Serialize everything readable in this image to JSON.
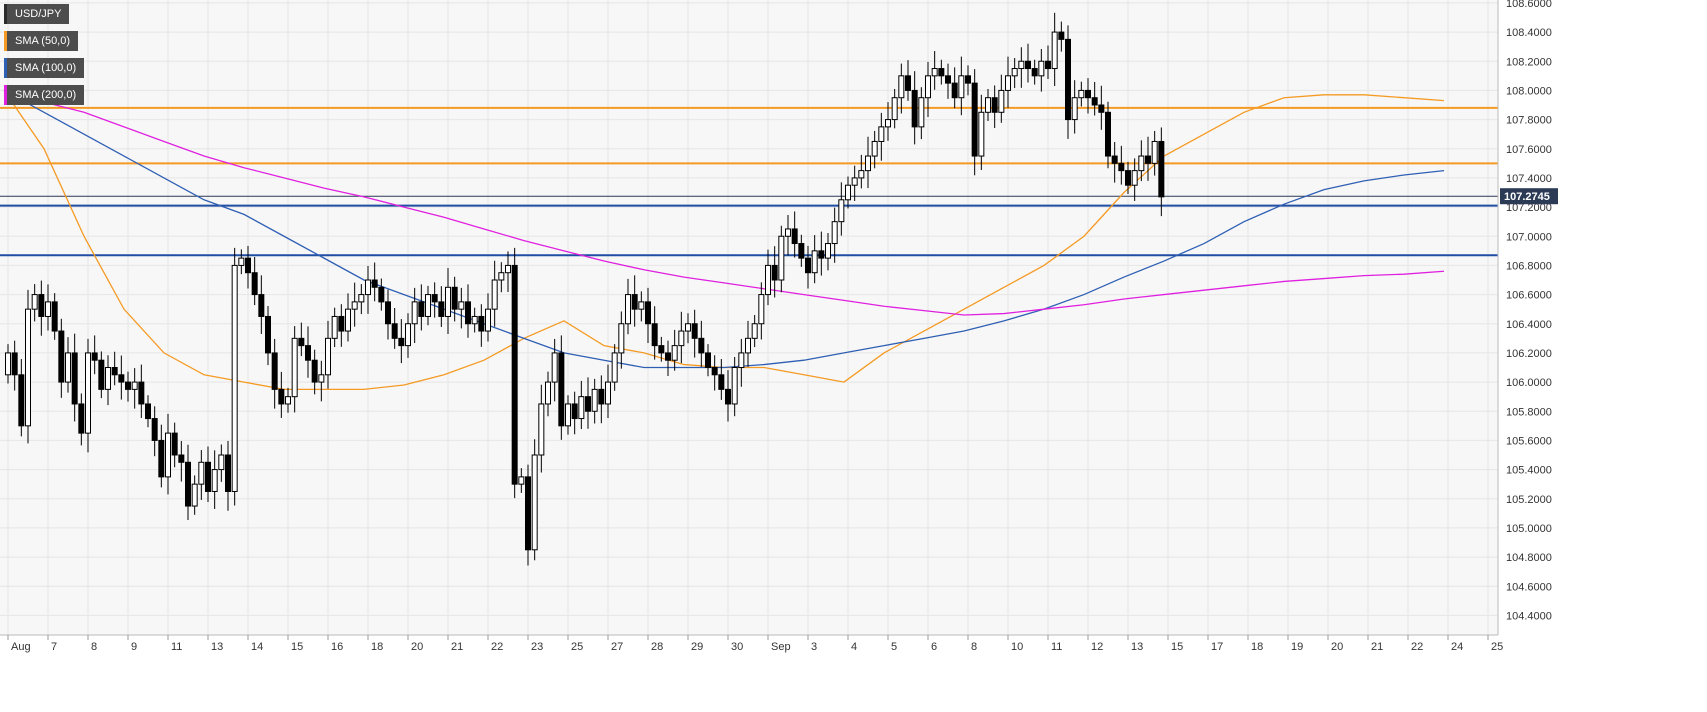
{
  "legend": [
    {
      "label": "USD/JPY",
      "color": "#2b2b2b"
    },
    {
      "label": "SMA (50,0)",
      "color": "#f59a23"
    },
    {
      "label": "SMA (100,0)",
      "color": "#2f5fb4"
    },
    {
      "label": "SMA (200,0)",
      "color": "#e020e0"
    }
  ],
  "colors": {
    "background": "#f7f7f7",
    "grid": "#e6e6e6",
    "bull_body": "#ffffff",
    "bear_body": "#000000",
    "wick": "#000000",
    "sma50": "#f59a23",
    "sma100": "#2f5fb4",
    "sma200": "#e020e0",
    "resistance": "#f59a23",
    "support": "#1f4ea3",
    "price_box": "#2b3a55"
  },
  "chart_data": {
    "type": "candlestick",
    "symbol": "USD/JPY",
    "current_price": "107.2745",
    "ylim": [
      104.3,
      108.62
    ],
    "yticks": [
      "104.4000",
      "104.6000",
      "104.8000",
      "105.0000",
      "105.2000",
      "105.4000",
      "105.6000",
      "105.8000",
      "106.0000",
      "106.2000",
      "106.4000",
      "106.6000",
      "106.8000",
      "107.0000",
      "107.2000",
      "107.4000",
      "107.6000",
      "107.8000",
      "108.0000",
      "108.2000",
      "108.4000",
      "108.6000"
    ],
    "xticks": [
      {
        "label": "Aug",
        "pos": 0
      },
      {
        "label": "7",
        "pos": 6
      },
      {
        "label": "8",
        "pos": 12
      },
      {
        "label": "9",
        "pos": 18
      },
      {
        "label": "11",
        "pos": 24
      },
      {
        "label": "13",
        "pos": 30
      },
      {
        "label": "14",
        "pos": 36
      },
      {
        "label": "15",
        "pos": 42
      },
      {
        "label": "16",
        "pos": 48
      },
      {
        "label": "18",
        "pos": 54
      },
      {
        "label": "20",
        "pos": 60
      },
      {
        "label": "21",
        "pos": 66
      },
      {
        "label": "22",
        "pos": 72
      },
      {
        "label": "23",
        "pos": 78
      },
      {
        "label": "25",
        "pos": 84
      },
      {
        "label": "27",
        "pos": 90
      },
      {
        "label": "28",
        "pos": 96
      },
      {
        "label": "29",
        "pos": 102
      },
      {
        "label": "30",
        "pos": 108
      },
      {
        "label": "Sep",
        "pos": 114
      },
      {
        "label": "3",
        "pos": 120
      },
      {
        "label": "4",
        "pos": 126
      },
      {
        "label": "5",
        "pos": 132
      },
      {
        "label": "6",
        "pos": 138
      },
      {
        "label": "8",
        "pos": 144
      },
      {
        "label": "10",
        "pos": 150
      },
      {
        "label": "11",
        "pos": 156
      },
      {
        "label": "12",
        "pos": 162
      },
      {
        "label": "13",
        "pos": 168
      },
      {
        "label": "15",
        "pos": 174
      },
      {
        "label": "17",
        "pos": 180
      },
      {
        "label": "18",
        "pos": 186
      },
      {
        "label": "19",
        "pos": 192
      },
      {
        "label": "20",
        "pos": 198
      },
      {
        "label": "21",
        "pos": 204
      },
      {
        "label": "22",
        "pos": 210
      },
      {
        "label": "24",
        "pos": 216
      },
      {
        "label": "25",
        "pos": 222
      }
    ],
    "candles_close": [
      106.2,
      106.05,
      105.7,
      106.5,
      106.6,
      106.45,
      106.55,
      106.35,
      106.0,
      106.2,
      105.85,
      105.65,
      106.2,
      106.15,
      105.95,
      106.1,
      106.05,
      106.0,
      105.95,
      106.0,
      105.85,
      105.75,
      105.6,
      105.35,
      105.65,
      105.5,
      105.45,
      105.15,
      105.3,
      105.45,
      105.25,
      105.4,
      105.5,
      105.25,
      106.8,
      106.85,
      106.75,
      106.6,
      106.45,
      106.2,
      105.95,
      105.85,
      105.9,
      106.3,
      106.25,
      106.15,
      106.0,
      106.05,
      106.3,
      106.45,
      106.35,
      106.5,
      106.55,
      106.6,
      106.7,
      106.65,
      106.55,
      106.4,
      106.3,
      106.25,
      106.4,
      106.55,
      106.45,
      106.6,
      106.55,
      106.45,
      106.65,
      106.5,
      106.55,
      106.4,
      106.45,
      106.35,
      106.5,
      106.7,
      106.75,
      106.8,
      105.3,
      105.35,
      104.85,
      105.5,
      105.85,
      106.0,
      106.2,
      105.7,
      105.85,
      105.75,
      105.9,
      105.8,
      105.95,
      105.85,
      106.0,
      106.2,
      106.4,
      106.6,
      106.5,
      106.55,
      106.4,
      106.25,
      106.2,
      106.15,
      106.25,
      106.35,
      106.4,
      106.3,
      106.2,
      106.1,
      106.05,
      105.95,
      105.85,
      106.1,
      106.2,
      106.3,
      106.4,
      106.6,
      106.8,
      106.7,
      107.0,
      107.05,
      106.95,
      106.85,
      106.75,
      106.9,
      106.85,
      106.95,
      107.1,
      107.25,
      107.35,
      107.4,
      107.45,
      107.55,
      107.65,
      107.75,
      107.8,
      107.95,
      108.1,
      108.0,
      107.75,
      107.95,
      108.1,
      108.15,
      108.1,
      108.05,
      107.95,
      108.1,
      108.05,
      107.55,
      107.85,
      107.95,
      107.85,
      108.0,
      108.1,
      108.15,
      108.2,
      108.15,
      108.1,
      108.2,
      108.15,
      108.4,
      108.35,
      107.8,
      107.95,
      108.0,
      107.95,
      107.9,
      107.85,
      107.55,
      107.5,
      107.45,
      107.35,
      107.45,
      107.55,
      107.5,
      107.65,
      107.27
    ],
    "candles_open": [
      106.05,
      106.2,
      106.05,
      105.7,
      106.5,
      106.6,
      106.45,
      106.55,
      106.35,
      106.0,
      106.2,
      105.85,
      105.65,
      106.2,
      106.15,
      105.95,
      106.1,
      106.05,
      106.0,
      105.95,
      106.0,
      105.85,
      105.75,
      105.6,
      105.35,
      105.65,
      105.5,
      105.45,
      105.15,
      105.3,
      105.45,
      105.25,
      105.4,
      105.5,
      105.25,
      106.8,
      106.85,
      106.75,
      106.6,
      106.45,
      106.2,
      105.95,
      105.85,
      105.9,
      106.3,
      106.25,
      106.15,
      106.0,
      106.05,
      106.3,
      106.45,
      106.35,
      106.5,
      106.55,
      106.6,
      106.7,
      106.65,
      106.55,
      106.4,
      106.3,
      106.25,
      106.4,
      106.55,
      106.45,
      106.6,
      106.55,
      106.45,
      106.65,
      106.5,
      106.55,
      106.4,
      106.45,
      106.35,
      106.5,
      106.7,
      106.75,
      106.8,
      105.3,
      105.35,
      104.85,
      105.5,
      105.85,
      106.0,
      106.2,
      105.7,
      105.85,
      105.75,
      105.9,
      105.8,
      105.95,
      105.85,
      106.0,
      106.2,
      106.4,
      106.6,
      106.5,
      106.55,
      106.4,
      106.25,
      106.2,
      106.15,
      106.25,
      106.35,
      106.4,
      106.3,
      106.2,
      106.1,
      106.05,
      105.95,
      105.85,
      106.1,
      106.2,
      106.3,
      106.4,
      106.6,
      106.8,
      106.7,
      107.0,
      107.05,
      106.95,
      106.85,
      106.75,
      106.9,
      106.85,
      106.95,
      107.1,
      107.25,
      107.35,
      107.4,
      107.45,
      107.55,
      107.65,
      107.75,
      107.8,
      107.95,
      108.1,
      108.0,
      107.75,
      107.95,
      108.1,
      108.15,
      108.1,
      108.05,
      107.95,
      108.1,
      108.05,
      107.55,
      107.85,
      107.95,
      107.85,
      108.0,
      108.1,
      108.15,
      108.2,
      108.15,
      108.1,
      108.2,
      108.15,
      108.4,
      108.35,
      107.8,
      107.95,
      108.0,
      107.95,
      107.9,
      107.85,
      107.55,
      107.5,
      107.45,
      107.35,
      107.45,
      107.55,
      107.5,
      107.65
    ],
    "sma50": [
      [
        0,
        108.0
      ],
      [
        6,
        107.6
      ],
      [
        12,
        107.0
      ],
      [
        18,
        106.5
      ],
      [
        24,
        106.2
      ],
      [
        30,
        106.05
      ],
      [
        36,
        106.0
      ],
      [
        42,
        105.95
      ],
      [
        48,
        105.95
      ],
      [
        54,
        105.95
      ],
      [
        60,
        105.98
      ],
      [
        66,
        106.05
      ],
      [
        72,
        106.15
      ],
      [
        78,
        106.3
      ],
      [
        84,
        106.42
      ],
      [
        90,
        106.25
      ],
      [
        96,
        106.2
      ],
      [
        102,
        106.12
      ],
      [
        108,
        106.1
      ],
      [
        114,
        106.1
      ],
      [
        120,
        106.05
      ],
      [
        126,
        106.0
      ],
      [
        132,
        106.2
      ],
      [
        138,
        106.35
      ],
      [
        144,
        106.5
      ],
      [
        150,
        106.65
      ],
      [
        156,
        106.8
      ],
      [
        162,
        107.0
      ],
      [
        168,
        107.3
      ],
      [
        174,
        107.55
      ],
      [
        180,
        107.7
      ],
      [
        186,
        107.85
      ],
      [
        192,
        107.95
      ],
      [
        198,
        107.97
      ],
      [
        204,
        107.97
      ],
      [
        210,
        107.95
      ],
      [
        216,
        107.93
      ]
    ],
    "sma100": [
      [
        0,
        108.0
      ],
      [
        6,
        107.85
      ],
      [
        12,
        107.7
      ],
      [
        18,
        107.55
      ],
      [
        24,
        107.4
      ],
      [
        30,
        107.25
      ],
      [
        36,
        107.15
      ],
      [
        42,
        107.0
      ],
      [
        48,
        106.85
      ],
      [
        54,
        106.7
      ],
      [
        60,
        106.6
      ],
      [
        66,
        106.5
      ],
      [
        72,
        106.4
      ],
      [
        78,
        106.3
      ],
      [
        84,
        106.2
      ],
      [
        90,
        106.15
      ],
      [
        96,
        106.1
      ],
      [
        102,
        106.1
      ],
      [
        108,
        106.1
      ],
      [
        114,
        106.12
      ],
      [
        120,
        106.15
      ],
      [
        126,
        106.2
      ],
      [
        132,
        106.25
      ],
      [
        138,
        106.3
      ],
      [
        144,
        106.35
      ],
      [
        150,
        106.42
      ],
      [
        156,
        106.5
      ],
      [
        162,
        106.6
      ],
      [
        168,
        106.72
      ],
      [
        174,
        106.83
      ],
      [
        180,
        106.95
      ],
      [
        186,
        107.1
      ],
      [
        192,
        107.22
      ],
      [
        198,
        107.32
      ],
      [
        204,
        107.38
      ],
      [
        210,
        107.42
      ],
      [
        216,
        107.45
      ]
    ],
    "sma200": [
      [
        0,
        108.0
      ],
      [
        6,
        107.92
      ],
      [
        12,
        107.85
      ],
      [
        18,
        107.75
      ],
      [
        24,
        107.65
      ],
      [
        30,
        107.55
      ],
      [
        36,
        107.47
      ],
      [
        42,
        107.4
      ],
      [
        48,
        107.33
      ],
      [
        54,
        107.27
      ],
      [
        60,
        107.2
      ],
      [
        66,
        107.13
      ],
      [
        72,
        107.05
      ],
      [
        78,
        106.97
      ],
      [
        84,
        106.9
      ],
      [
        90,
        106.83
      ],
      [
        96,
        106.77
      ],
      [
        102,
        106.72
      ],
      [
        108,
        106.68
      ],
      [
        114,
        106.64
      ],
      [
        120,
        106.6
      ],
      [
        126,
        106.56
      ],
      [
        132,
        106.52
      ],
      [
        138,
        106.49
      ],
      [
        144,
        106.46
      ],
      [
        150,
        106.47
      ],
      [
        156,
        106.5
      ],
      [
        162,
        106.53
      ],
      [
        168,
        106.57
      ],
      [
        174,
        106.6
      ],
      [
        180,
        106.63
      ],
      [
        186,
        106.66
      ],
      [
        192,
        106.69
      ],
      [
        198,
        106.71
      ],
      [
        204,
        106.73
      ],
      [
        210,
        106.74
      ],
      [
        216,
        106.76
      ]
    ],
    "hlines": [
      {
        "value": 107.88,
        "kind": "resistance"
      },
      {
        "value": 107.5,
        "kind": "resistance"
      },
      {
        "value": 107.21,
        "kind": "support"
      },
      {
        "value": 106.87,
        "kind": "support"
      }
    ]
  }
}
